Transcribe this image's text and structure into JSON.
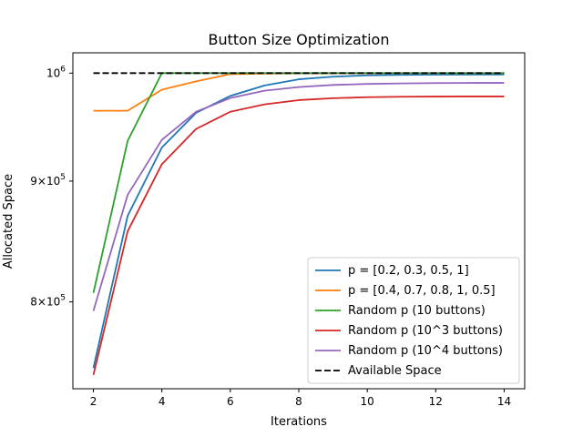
{
  "chart_data": {
    "type": "line",
    "title": "Button Size Optimization",
    "xlabel": "Iterations",
    "ylabel": "Allocated Space",
    "yscale": "log",
    "xlim": [
      1.4,
      14.6
    ],
    "ylim": [
      735000,
      1020000
    ],
    "x_ticks": [
      2,
      4,
      6,
      8,
      10,
      12,
      14
    ],
    "y_ticks": [
      {
        "value": 800000,
        "mantissa": "8",
        "exponent": "5"
      },
      {
        "value": 900000,
        "mantissa": "9",
        "exponent": "5"
      },
      {
        "value": 1000000,
        "mantissa": "10",
        "exponent": "6"
      }
    ],
    "grid": false,
    "legend_position": "lower-right",
    "x": [
      2,
      3,
      4,
      5,
      6,
      7,
      8,
      9,
      10,
      11,
      12,
      13,
      14
    ],
    "series": [
      {
        "name": "p = [0.2, 0.3, 0.5, 1]",
        "color": "#1f77b4",
        "dash": "solid",
        "values": [
          750000,
          870000,
          930000,
          962000,
          978000,
          988000,
          994000,
          996500,
          997800,
          998300,
          998500,
          998600,
          998600
        ]
      },
      {
        "name": "p = [0.4, 0.7, 0.8, 1, 0.5]",
        "color": "#ff7f0e",
        "dash": "solid",
        "values": [
          964000,
          964000,
          984000,
          992000,
          999000,
          999500,
          999700,
          999800,
          999850,
          999900,
          999920,
          999940,
          999950
        ]
      },
      {
        "name": "Random p (10 buttons)",
        "color": "#2ca02c",
        "dash": "solid",
        "values": [
          807000,
          936000,
          1000000,
          1000000,
          1000000,
          1000000,
          1000000,
          1000000,
          1000000,
          1000000,
          1000000,
          1000000,
          1000000
        ]
      },
      {
        "name": "Random p (10^3 buttons)",
        "color": "#d62728",
        "dash": "solid",
        "values": [
          745000,
          857000,
          915000,
          947000,
          963000,
          970000,
          974000,
          975800,
          976800,
          977200,
          977400,
          977500,
          977500
        ]
      },
      {
        "name": "Random p (10^4 buttons)",
        "color": "#9467bd",
        "dash": "solid",
        "values": [
          793000,
          888000,
          937000,
          963000,
          976000,
          983000,
          986500,
          988500,
          989500,
          990000,
          990300,
          990500,
          990500
        ]
      },
      {
        "name": "Available Space",
        "color": "#000000",
        "dash": "dashed",
        "values": [
          1000000,
          1000000,
          1000000,
          1000000,
          1000000,
          1000000,
          1000000,
          1000000,
          1000000,
          1000000,
          1000000,
          1000000,
          1000000
        ]
      }
    ]
  }
}
